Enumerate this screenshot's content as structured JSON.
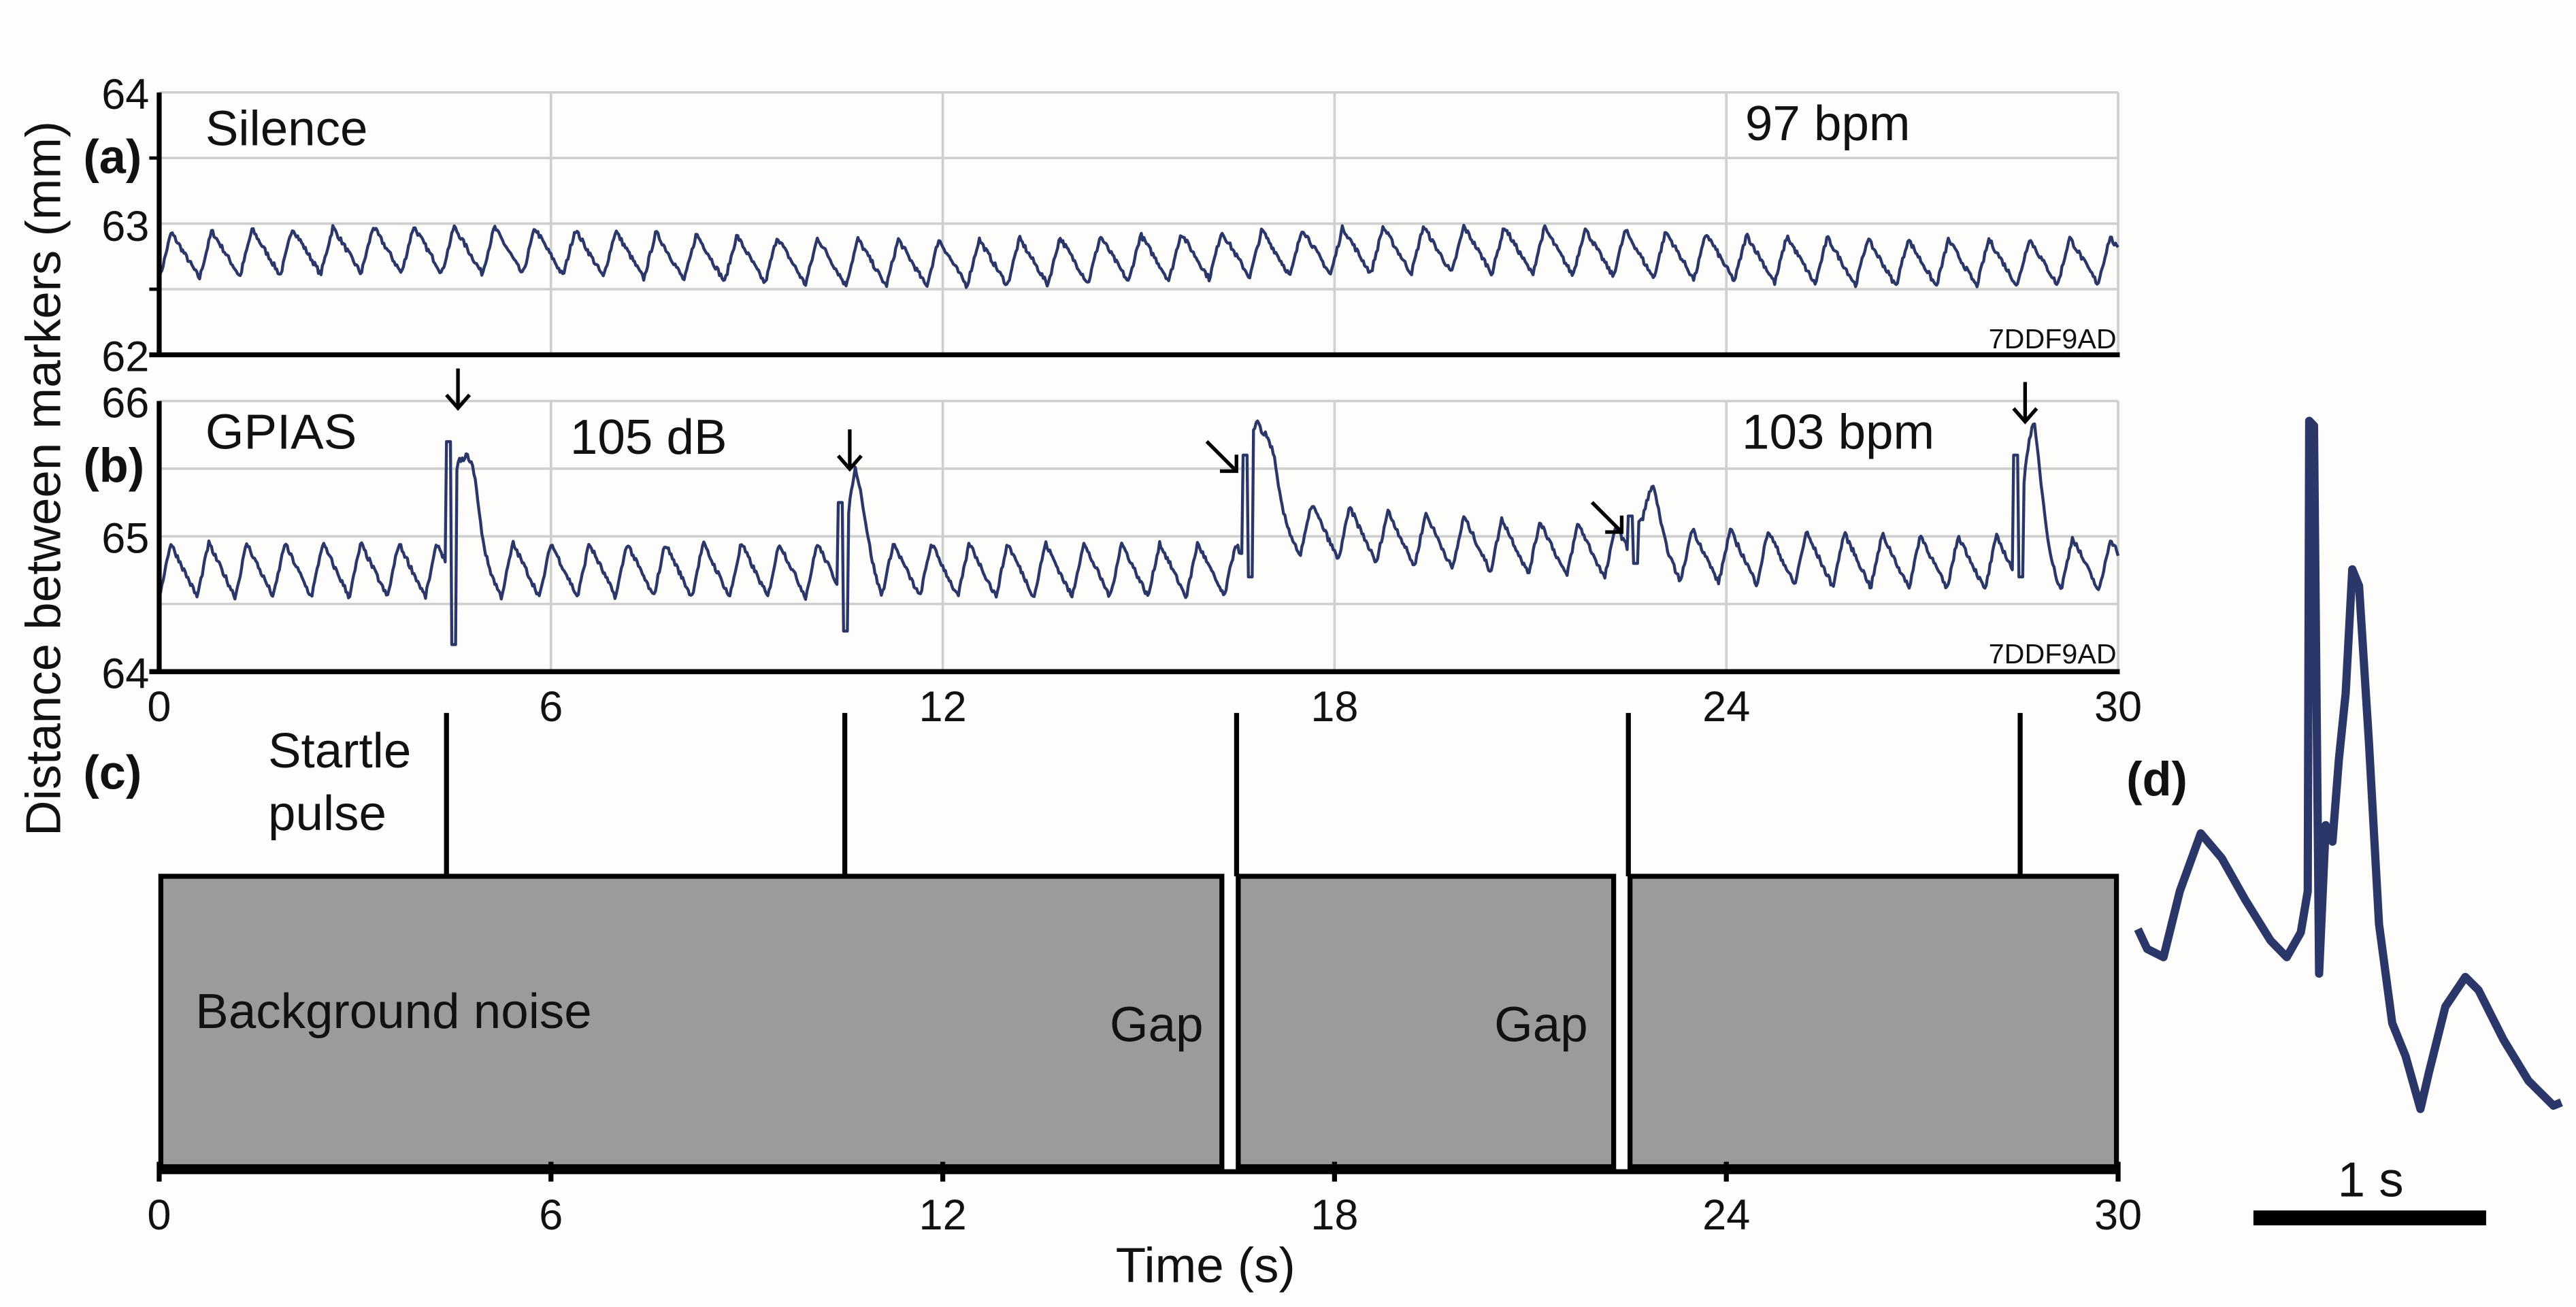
{
  "chart_data": [
    {
      "panel": "(a)",
      "type": "line",
      "condition": "Silence",
      "rate_label": "97 bpm",
      "heart_rate_bpm": 97,
      "watermark": "7DDF9AD",
      "ylabel": "Distance between markers (mm)",
      "ylim": [
        62,
        64
      ],
      "yticks": [
        "64",
        "63",
        "62"
      ],
      "xlim": [
        0,
        30
      ],
      "baseline_mm": 62.75,
      "amplitude_mm": 0.18
    },
    {
      "panel": "(b)",
      "type": "line",
      "condition": "GPIAS",
      "level_label": "105 dB",
      "rate_label": "103 bpm",
      "heart_rate_bpm": 103,
      "watermark": "7DDF9AD",
      "ylim": [
        64,
        66
      ],
      "yticks": [
        "66",
        "65",
        "64"
      ],
      "xlim": [
        0,
        30
      ],
      "xticks": [
        "0",
        "6",
        "12",
        "18",
        "24",
        "30"
      ],
      "baseline_mm": 64.75,
      "amplitude_mm": 0.2,
      "startle_responses": [
        {
          "t": 4.5,
          "peak": 65.85,
          "trough": 64.2,
          "arrow": "down"
        },
        {
          "t": 10.5,
          "peak": 65.4,
          "trough": 64.3,
          "arrow": "down"
        },
        {
          "t": 16.7,
          "peak": 65.75,
          "trough": 64.7,
          "arrow": "diagonal"
        },
        {
          "t": 22.6,
          "peak": 65.3,
          "trough": 64.8,
          "arrow": "diagonal"
        },
        {
          "t": 28.5,
          "peak": 65.75,
          "trough": 64.7,
          "arrow": "down"
        }
      ]
    },
    {
      "panel": "(c)",
      "type": "diagram",
      "startle_label_1": "Startle",
      "startle_label_2": "pulse",
      "background_label": "Background noise",
      "gap_label": "Gap",
      "startle_times_s": [
        4.4,
        10.5,
        16.5,
        22.5,
        28.5
      ],
      "noise_segments_s": [
        [
          0,
          16.3
        ],
        [
          16.5,
          22.3
        ],
        [
          22.5,
          30
        ]
      ],
      "xticks": [
        "0",
        "6",
        "12",
        "18",
        "24",
        "30"
      ],
      "xlabel": "Time (s)",
      "xlim": [
        0,
        30
      ]
    },
    {
      "panel": "(d)",
      "type": "line",
      "scale_label": "1 s",
      "scale_bar_s": 1,
      "points_t_s": [
        0,
        0.04,
        0.11,
        0.18,
        0.27,
        0.36,
        0.46,
        0.57,
        0.64,
        0.7,
        0.73,
        0.736,
        0.757,
        0.779,
        0.807,
        0.836,
        0.864,
        0.893,
        0.921,
        0.95,
        0.993,
        1.036,
        1.093,
        1.15,
        1.214,
        1.25,
        1.321,
        1.407,
        1.464,
        1.571,
        1.679,
        1.786,
        1.82
      ],
      "points_v": [
        0.37,
        0.25,
        0.2,
        0.6,
        0.95,
        0.8,
        0.55,
        0.3,
        0.2,
        0.35,
        0.6,
        3.45,
        3.42,
        0.1,
        1.0,
        0.9,
        1.4,
        1.8,
        2.55,
        2.45,
        1.5,
        0.4,
        -0.2,
        -0.4,
        -0.72,
        -0.5,
        -0.1,
        0.08,
        0.0,
        -0.3,
        -0.55,
        -0.7,
        -0.68
      ]
    }
  ]
}
